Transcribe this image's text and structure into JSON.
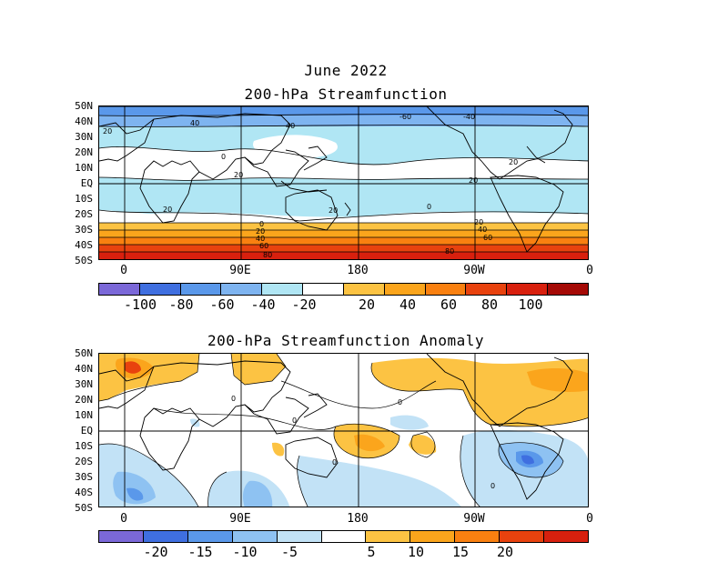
{
  "header": {
    "date": "June 2022",
    "title_top": "200-hPa Streamfunction",
    "title_bottom": "200-hPa Streamfunction Anomaly"
  },
  "lat_labels": [
    "50N",
    "40N",
    "30N",
    "20N",
    "10N",
    "EQ",
    "10S",
    "20S",
    "30S",
    "40S",
    "50S"
  ],
  "lon_labels": [
    "0",
    "90E",
    "180",
    "90W",
    "0"
  ],
  "top_map": {
    "contour_labels": [
      "20",
      "40",
      "40",
      "-60",
      "-40",
      "0",
      "20",
      "20",
      "20",
      "0",
      "20",
      "20",
      "0",
      "20",
      "40",
      "60",
      "80",
      "20",
      "40",
      "60",
      "80"
    ],
    "colorbar": {
      "colors": [
        "#7b68d8",
        "#3f6fe0",
        "#5a98ea",
        "#7eb4f0",
        "#b0e6f4",
        "#ffffff",
        "#fcc343",
        "#fba51c",
        "#f98010",
        "#e8420e",
        "#d8200e",
        "#a50a06"
      ],
      "labels": [
        "-100",
        "-80",
        "-60",
        "-40",
        "-20",
        "20",
        "40",
        "60",
        "80",
        "100"
      ]
    }
  },
  "bottom_map": {
    "contour_labels": [
      "0",
      "0",
      "0",
      "0",
      "0"
    ],
    "colorbar": {
      "colors": [
        "#7b68d8",
        "#3f6fe0",
        "#5a98ea",
        "#8ec2f2",
        "#c2e2f6",
        "#ffffff",
        "#fcc343",
        "#fba51c",
        "#f98010",
        "#e8420e",
        "#d8200e"
      ],
      "labels": [
        "-20",
        "-15",
        "-10",
        "-5",
        "5",
        "10",
        "15",
        "20"
      ]
    }
  }
}
